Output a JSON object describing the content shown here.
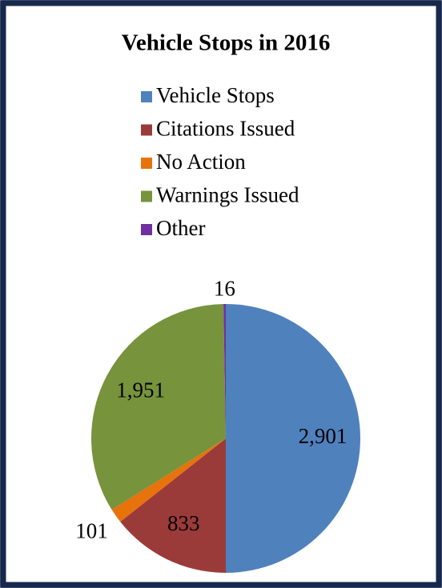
{
  "chart_data": {
    "type": "pie",
    "title": "Vehicle Stops in 2016",
    "categories": [
      "Vehicle Stops",
      "Citations Issued",
      "No Action",
      "Warnings Issued",
      "Other"
    ],
    "values": [
      2901,
      833,
      101,
      1951,
      16
    ],
    "value_labels": [
      "2,901",
      "833",
      "101",
      "1,951",
      "16"
    ],
    "colors": [
      "#4f81bd",
      "#9b3b39",
      "#e8720c",
      "#77933c",
      "#7030a0"
    ],
    "legend": "top"
  }
}
